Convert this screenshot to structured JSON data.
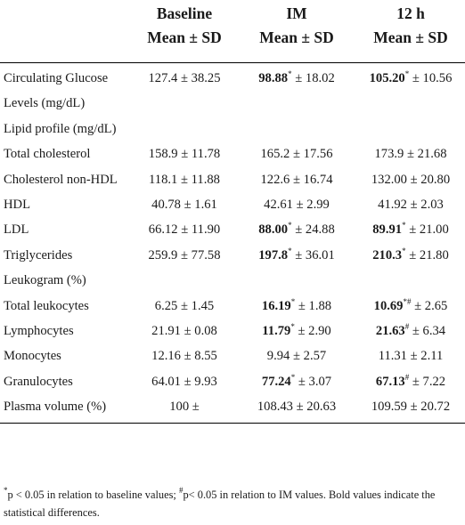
{
  "header": {
    "columns": [
      "Baseline",
      "IM",
      "12 h"
    ],
    "stat_label": "Mean ± SD"
  },
  "rows": [
    {
      "label": "Circulating Glucose Levels (mg/dL)",
      "cells": [
        {
          "mean": "127.4",
          "sd": "38.25"
        },
        {
          "mean": "98.88",
          "sup": "*",
          "bold": true,
          "sd": "18.02"
        },
        {
          "mean": "105.20",
          "sup": "*",
          "bold": true,
          "sd": "10.56"
        }
      ]
    },
    {
      "label": "Lipid profile (mg/dL)",
      "cells": []
    },
    {
      "label": "Total cholesterol",
      "cells": [
        {
          "mean": "158.9",
          "sd": "11.78"
        },
        {
          "mean": "165.2",
          "sd": "17.56"
        },
        {
          "mean": "173.9",
          "sd": "21.68"
        }
      ]
    },
    {
      "label": "Cholesterol non-HDL",
      "cells": [
        {
          "mean": "118.1",
          "sd": "11.88"
        },
        {
          "mean": "122.6",
          "sd": "16.74"
        },
        {
          "mean": "132.00",
          "sd": "20.80"
        }
      ]
    },
    {
      "label": "HDL",
      "cells": [
        {
          "mean": "40.78",
          "sd": "1.61"
        },
        {
          "mean": "42.61",
          "sd": "2.99"
        },
        {
          "mean": "41.92",
          "sd": "2.03"
        }
      ]
    },
    {
      "label": "LDL",
      "cells": [
        {
          "mean": "66.12",
          "sd": "11.90"
        },
        {
          "mean": "88.00",
          "sup": "*",
          "bold": true,
          "sd": "24.88"
        },
        {
          "mean": "89.91",
          "sup": "*",
          "bold": true,
          "sd": "21.00"
        }
      ]
    },
    {
      "label": "Triglycerides",
      "cells": [
        {
          "mean": "259.9",
          "sd": "77.58"
        },
        {
          "mean": "197.8",
          "sup": "*",
          "bold": true,
          "sd": "36.01"
        },
        {
          "mean": "210.3",
          "sup": "*",
          "bold": true,
          "sd": "21.80"
        }
      ]
    },
    {
      "label": "Leukogram (%)",
      "cells": []
    },
    {
      "label": "Total leukocytes",
      "cells": [
        {
          "mean": "6.25",
          "sd": "1.45"
        },
        {
          "mean": "16.19",
          "sup": "*",
          "bold": true,
          "sd": "1.88"
        },
        {
          "mean": "10.69",
          "sup": "*#",
          "bold": true,
          "sd": "2.65"
        }
      ]
    },
    {
      "label": "Lymphocytes",
      "cells": [
        {
          "mean": "21.91",
          "sd": "0.08"
        },
        {
          "mean": "11.79",
          "sup": "*",
          "bold": true,
          "sd": "2.90"
        },
        {
          "mean": "21.63",
          "sup": "#",
          "bold": true,
          "sd": "6.34"
        }
      ]
    },
    {
      "label": "Monocytes",
      "cells": [
        {
          "mean": "12.16",
          "sd": "8.55"
        },
        {
          "mean": "9.94",
          "sd": "2.57"
        },
        {
          "mean": "11.31",
          "sd": "2.11"
        }
      ]
    },
    {
      "label": "Granulocytes",
      "cells": [
        {
          "mean": "64.01",
          "sd": "9.93"
        },
        {
          "mean": "77.24",
          "sup": "*",
          "bold": true,
          "sd": "3.07"
        },
        {
          "mean": "67.13",
          "sup": "#",
          "bold": true,
          "sd": "7.22"
        }
      ]
    },
    {
      "label": "Plasma volume (%)",
      "cells": [
        {
          "mean": "100",
          "sd": ""
        },
        {
          "mean": "108.43",
          "sd": "20.63"
        },
        {
          "mean": "109.59",
          "sd": "20.72"
        }
      ]
    }
  ],
  "footnote": {
    "parts": [
      {
        "sup": "*",
        "text": "p < 0.05 in relation to baseline values; "
      },
      {
        "sup": "#",
        "text": "p< 0.05 in relation to IM values. Bold values indicate the statistical differences."
      }
    ]
  }
}
